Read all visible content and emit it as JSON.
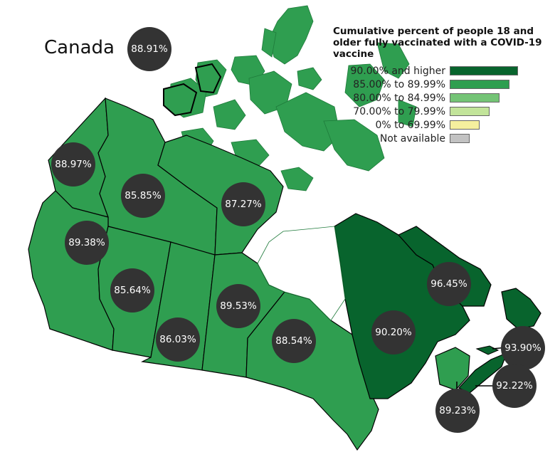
{
  "map": {
    "title": "Canada",
    "national_value": "88.91%",
    "legend": {
      "title": "Cumulative percent of people 18 and older fully vaccinated with a COVID-19 vaccine",
      "bins": [
        {
          "label": "90.00% and higher",
          "color": "#08642d"
        },
        {
          "label": "85.00% to 89.99%",
          "color": "#2f9e50"
        },
        {
          "label": "80.00% to 84.99%",
          "color": "#74c476"
        },
        {
          "label": "70.00% to 79.99%",
          "color": "#c2e49a"
        },
        {
          "label": "0% to 69.99%",
          "color": "#f5ef9e"
        },
        {
          "label": "Not available",
          "color": "#c2c2c2"
        }
      ]
    },
    "regions": [
      {
        "name": "Yukon",
        "value": "88.97%"
      },
      {
        "name": "Northwest Territories",
        "value": "85.85%"
      },
      {
        "name": "Nunavut",
        "value": "87.27%"
      },
      {
        "name": "British Columbia",
        "value": "89.38%"
      },
      {
        "name": "Alberta",
        "value": "85.64%"
      },
      {
        "name": "Saskatchewan",
        "value": "86.03%"
      },
      {
        "name": "Manitoba",
        "value": "89.53%"
      },
      {
        "name": "Ontario",
        "value": "88.54%"
      },
      {
        "name": "Quebec",
        "value": "90.20%"
      },
      {
        "name": "Newfoundland and Labrador",
        "value": "96.45%"
      },
      {
        "name": "Prince Edward Island",
        "value": "93.90%"
      },
      {
        "name": "Nova Scotia",
        "value": "92.22%"
      },
      {
        "name": "New Brunswick",
        "value": "89.23%"
      }
    ]
  }
}
